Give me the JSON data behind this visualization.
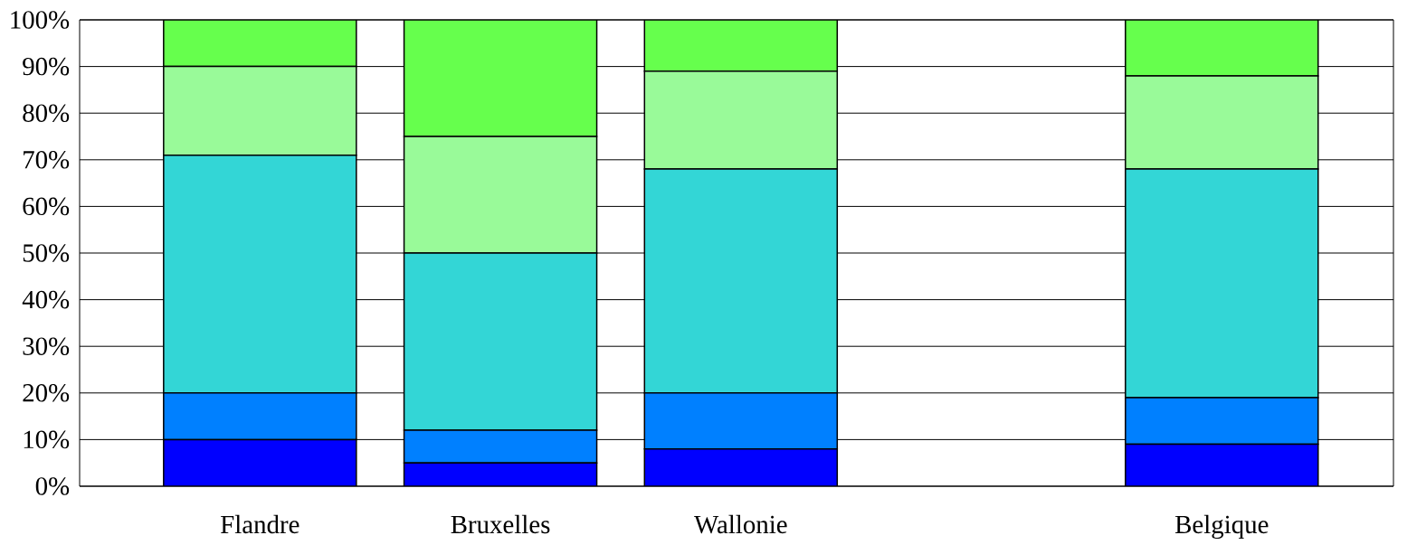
{
  "chart_data": {
    "type": "bar",
    "stacked": true,
    "categories": [
      "Flandre",
      "Bruxelles",
      "Wallonie",
      null,
      "Belgique"
    ],
    "series": [
      {
        "color": "#0000ff",
        "values": [
          10,
          5,
          8,
          null,
          9
        ]
      },
      {
        "color": "#0080ff",
        "values": [
          10,
          7,
          12,
          null,
          10
        ]
      },
      {
        "color": "#33d6d6",
        "values": [
          51,
          38,
          48,
          null,
          49
        ]
      },
      {
        "color": "#99fa99",
        "values": [
          19,
          25,
          21,
          null,
          20
        ]
      },
      {
        "color": "#66ff4d",
        "values": [
          10,
          25,
          11,
          null,
          12
        ]
      }
    ],
    "ylim": [
      0,
      100
    ],
    "yticks": [
      {
        "value": 0,
        "label": "0%"
      },
      {
        "value": 10,
        "label": "10%"
      },
      {
        "value": 20,
        "label": "20%"
      },
      {
        "value": 30,
        "label": "30%"
      },
      {
        "value": 40,
        "label": "40%"
      },
      {
        "value": 50,
        "label": "50%"
      },
      {
        "value": 60,
        "label": "60%"
      },
      {
        "value": 70,
        "label": "70%"
      },
      {
        "value": 80,
        "label": "80%"
      },
      {
        "value": 90,
        "label": "90%"
      },
      {
        "value": 100,
        "label": "100%"
      }
    ],
    "grid": "y"
  }
}
